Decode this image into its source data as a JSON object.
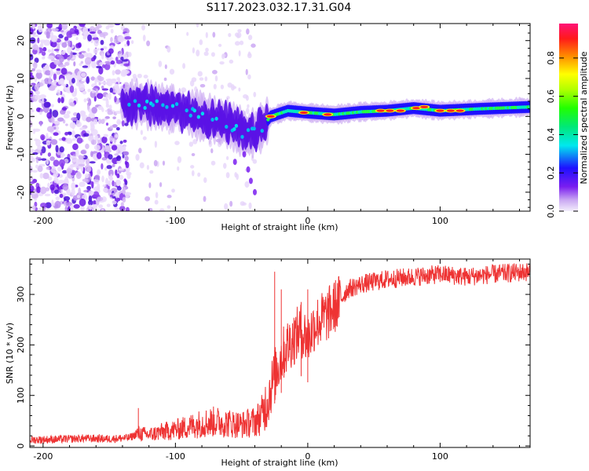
{
  "title": "S117.2023.032.17.31.G04",
  "chart_data": [
    {
      "type": "heatmap",
      "xlabel": "Height of straight line (km)",
      "ylabel": "Frequency (Hz)",
      "xlim": [
        -210,
        168
      ],
      "ylim": [
        -25,
        24.5
      ],
      "xticks": [
        -200,
        -100,
        0,
        100
      ],
      "yticks": [
        -20,
        -10,
        0,
        10,
        20
      ],
      "colorbar": {
        "label": "Normalized spectral amplitude",
        "range": [
          0,
          0.98
        ],
        "ticks": [
          0.0,
          0.2,
          0.4,
          0.6,
          0.8
        ]
      },
      "ridge": [
        {
          "x": -140,
          "y": 3.5
        },
        {
          "x": -120,
          "y": 3
        },
        {
          "x": -100,
          "y": 2
        },
        {
          "x": -80,
          "y": 0
        },
        {
          "x": -60,
          "y": -2
        },
        {
          "x": -45,
          "y": -5
        },
        {
          "x": -35,
          "y": -3
        },
        {
          "x": -28,
          "y": 0
        },
        {
          "x": -15,
          "y": 1.5
        },
        {
          "x": 0,
          "y": 1
        },
        {
          "x": 20,
          "y": 0.5
        },
        {
          "x": 40,
          "y": 1.2
        },
        {
          "x": 60,
          "y": 1.5
        },
        {
          "x": 80,
          "y": 2.2
        },
        {
          "x": 100,
          "y": 1.5
        },
        {
          "x": 130,
          "y": 2
        },
        {
          "x": 168,
          "y": 2.5
        }
      ]
    },
    {
      "type": "line",
      "xlabel": "Height of straight line (km)",
      "ylabel": "SNR (10 * v/v)",
      "xlim": [
        -210,
        168
      ],
      "ylim": [
        -3,
        370
      ],
      "xticks": [
        -200,
        -100,
        0,
        100
      ],
      "yticks": [
        0,
        100,
        200,
        300
      ],
      "series": [
        {
          "color": "#ee3333",
          "x": [
            -210,
            -190,
            -170,
            -150,
            -135,
            -128,
            -120,
            -110,
            -100,
            -90,
            -80,
            -70,
            -60,
            -50,
            -40,
            -35,
            -30,
            -25,
            -20,
            -15,
            -10,
            -5,
            0,
            5,
            10,
            15,
            20,
            25,
            30,
            40,
            50,
            60,
            80,
            100,
            120,
            140,
            168
          ],
          "y": [
            12,
            13,
            15,
            14,
            16,
            25,
            22,
            28,
            32,
            38,
            45,
            48,
            45,
            42,
            48,
            60,
            95,
            140,
            175,
            200,
            215,
            230,
            210,
            240,
            250,
            260,
            275,
            290,
            310,
            320,
            325,
            330,
            335,
            340,
            335,
            340,
            345
          ]
        }
      ]
    }
  ]
}
